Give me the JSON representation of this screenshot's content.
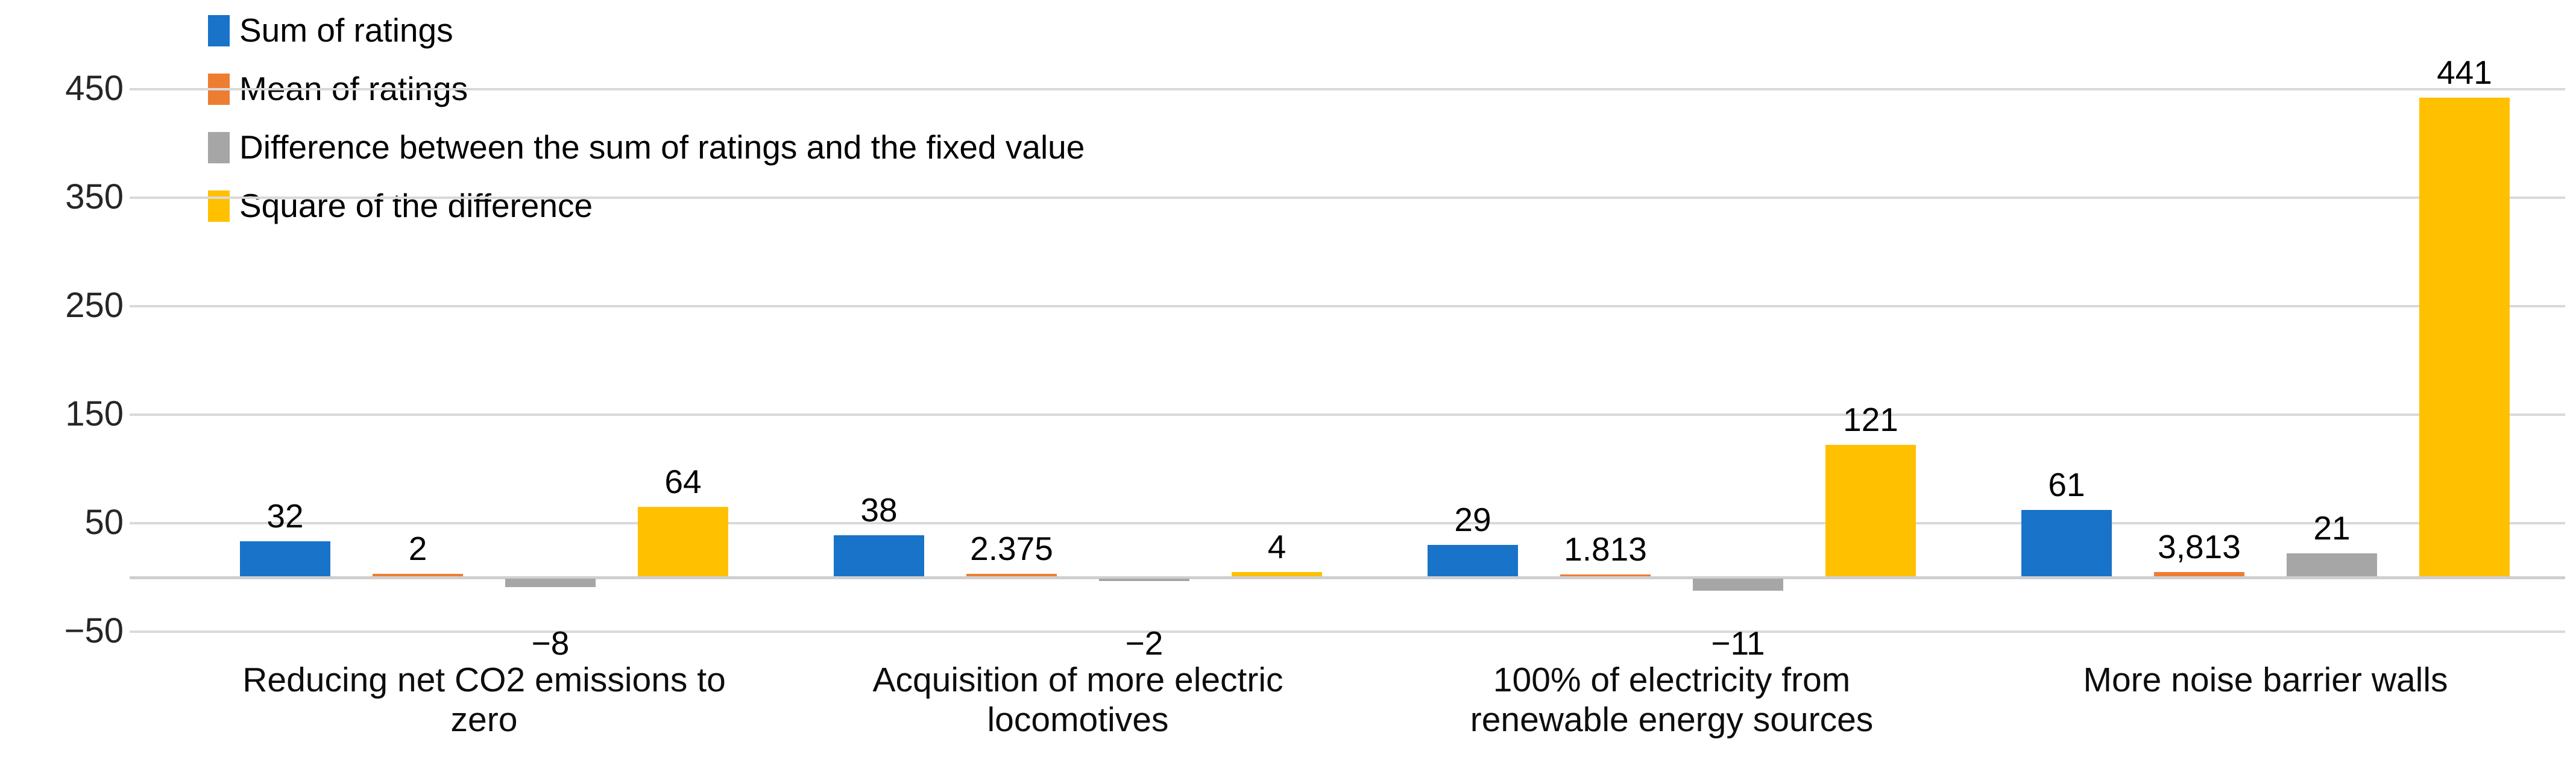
{
  "chart_data": {
    "type": "bar",
    "title": "",
    "legend_position": "top-left",
    "grid": true,
    "categories": [
      {
        "label": "Reducing net CO2 emissions to zero",
        "lines": [
          "Reducing net CO2 emissions to",
          "zero"
        ]
      },
      {
        "label": "Acquisition of more electric locomotives",
        "lines": [
          "Acquisition of more electric",
          "locomotives"
        ]
      },
      {
        "label": "100% of electricity from renewable energy sources",
        "lines": [
          "100% of electricity from",
          "renewable energy sources"
        ]
      },
      {
        "label": "More noise barrier walls",
        "lines": [
          "More noise barrier walls"
        ]
      }
    ],
    "series": [
      {
        "name": "Sum of ratings",
        "color": "#1973c8",
        "values": [
          32,
          38,
          29,
          61
        ],
        "labels": [
          "32",
          "38",
          "29",
          "61"
        ]
      },
      {
        "name": "Mean of ratings",
        "color": "#ed7d31",
        "values": [
          2,
          2.375,
          1.813,
          3.813
        ],
        "labels": [
          "2",
          "2.375",
          "1.813",
          "3,813"
        ]
      },
      {
        "name": "Difference between the sum of ratings and the fixed value",
        "color": "#a6a6a6",
        "values": [
          -8,
          -2,
          -11,
          21
        ],
        "labels": [
          "−8",
          "−2",
          "−11",
          "21"
        ]
      },
      {
        "name": "Square of the difference",
        "color": "#ffc000",
        "values": [
          64,
          4,
          121,
          441
        ],
        "labels": [
          "64",
          "4",
          "121",
          "441"
        ]
      }
    ],
    "y_axis": {
      "min": -50,
      "max": 450,
      "ticks": [
        450,
        350,
        250,
        150,
        50,
        -50
      ],
      "tick_labels": [
        "450",
        "350",
        "250",
        "150",
        "50",
        "−50"
      ],
      "gridlines": [
        450,
        350,
        250,
        150,
        50,
        0,
        -50
      ]
    }
  },
  "colors": {
    "gridline": "#d9d9d9",
    "zero_axis": "#cfcfcf",
    "background": "#ffffff"
  }
}
